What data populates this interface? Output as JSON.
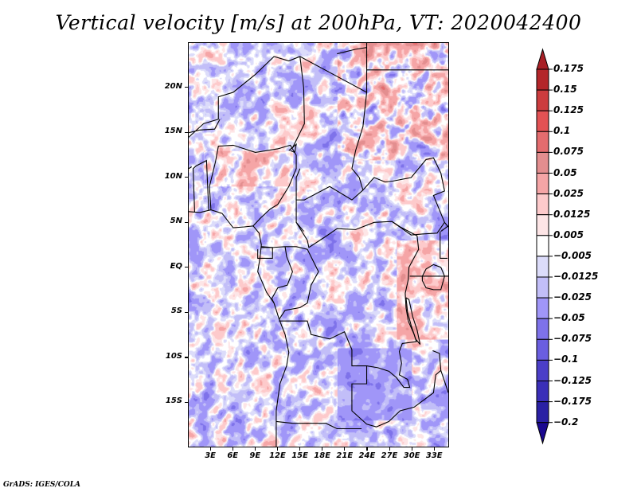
{
  "title": "Vertical velocity [m/s] at 200hPa, VT: 2020042400",
  "credit": "GrADS: IGES/COLA",
  "map": {
    "variable": "Vertical velocity",
    "units": "m/s",
    "level": "200hPa",
    "valid_time": "2020042400",
    "lon_range": [
      0,
      35
    ],
    "lat_range": [
      -20,
      25
    ],
    "lat_ticks": [
      {
        "value": 20,
        "label": "20N"
      },
      {
        "value": 15,
        "label": "15N"
      },
      {
        "value": 10,
        "label": "10N"
      },
      {
        "value": 5,
        "label": "5N"
      },
      {
        "value": 0,
        "label": "EQ"
      },
      {
        "value": -5,
        "label": "5S"
      },
      {
        "value": -10,
        "label": "10S"
      },
      {
        "value": -15,
        "label": "15S"
      }
    ],
    "lon_ticks": [
      {
        "value": 3,
        "label": "3E"
      },
      {
        "value": 6,
        "label": "6E"
      },
      {
        "value": 9,
        "label": "9E"
      },
      {
        "value": 12,
        "label": "12E"
      },
      {
        "value": 15,
        "label": "15E"
      },
      {
        "value": 18,
        "label": "18E"
      },
      {
        "value": 21,
        "label": "21E"
      },
      {
        "value": 24,
        "label": "24E"
      },
      {
        "value": 27,
        "label": "27E"
      },
      {
        "value": 30,
        "label": "30E"
      },
      {
        "value": 33,
        "label": "33E"
      }
    ]
  },
  "colorbar": {
    "labels": [
      "0.175",
      "0.15",
      "0.125",
      "0.1",
      "0.075",
      "0.05",
      "0.025",
      "0.0125",
      "0.005",
      "-0.005",
      "-0.0125",
      "-0.025",
      "-0.05",
      "-0.075",
      "-0.1",
      "-0.125",
      "-0.175",
      "-0.2"
    ],
    "levels": [
      0.175,
      0.15,
      0.125,
      0.1,
      0.075,
      0.05,
      0.025,
      0.0125,
      0.005,
      -0.005,
      -0.0125,
      -0.025,
      -0.05,
      -0.075,
      -0.1,
      -0.125,
      -0.175,
      -0.2
    ],
    "colors": [
      "#b4262a",
      "#cc3c3e",
      "#e35254",
      "#e46c6e",
      "#e38e8f",
      "#f5a5a6",
      "#fdcacb",
      "#fde5e6",
      "#ffffff",
      "#dcdcfa",
      "#c2bef8",
      "#a096f8",
      "#7e72ea",
      "#6a5ee0",
      "#4b3ec8",
      "#3a2eb8",
      "#2a20a4",
      "#1e0c96"
    ],
    "top_arrow_color": "#a82026",
    "bottom_arrow_color": "#1a0890"
  },
  "chart_data": {
    "type": "heatmap",
    "title": "Vertical velocity [m/s] at 200hPa, VT: 2020042400",
    "xlabel": "",
    "ylabel": "",
    "x_range": [
      0,
      35
    ],
    "y_range": [
      -20,
      25
    ],
    "x_tick_labels": [
      "3E",
      "6E",
      "9E",
      "12E",
      "15E",
      "18E",
      "21E",
      "24E",
      "27E",
      "30E",
      "33E"
    ],
    "y_tick_labels": [
      "20N",
      "15N",
      "10N",
      "5N",
      "EQ",
      "5S",
      "10S",
      "15S"
    ],
    "legend": "right-colorbar",
    "color_levels": [
      -0.2,
      -0.175,
      -0.125,
      -0.1,
      -0.075,
      -0.05,
      -0.025,
      -0.0125,
      -0.005,
      0.005,
      0.0125,
      0.025,
      0.05,
      0.075,
      0.1,
      0.125,
      0.15,
      0.175
    ],
    "notes": "Filled contour field over Central Africa; noisy alternating positive/negative values, stronger positive (red) bands in NE (Sudan/Egypt) and around Lake Victoria / Lake Tanganyika; broad negative (blue) area over Zambia/DRC south."
  }
}
